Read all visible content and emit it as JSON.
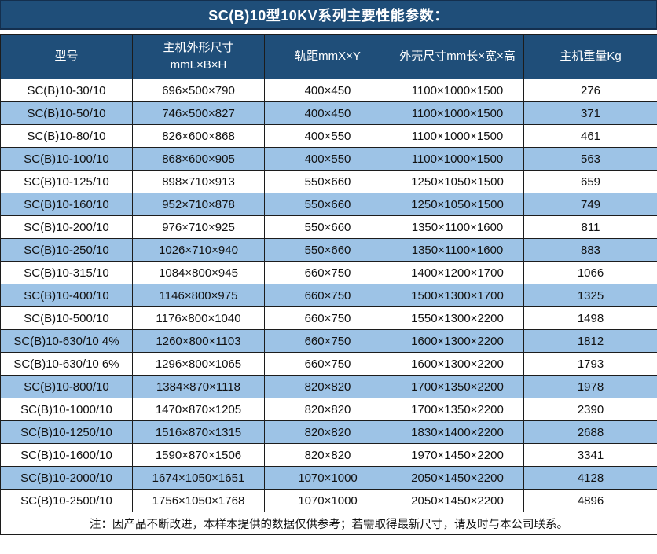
{
  "title": "SC(B)10型10KV系列主要性能参数：",
  "table": {
    "headers": [
      "型号",
      "主机外形尺寸\nmmL×B×H",
      "轨距mmX×Y",
      "外壳尺寸mm长×宽×高",
      "主机重量Kg"
    ],
    "rows": [
      [
        "SC(B)10-30/10",
        "696×500×790",
        "400×450",
        "1100×1000×1500",
        "276"
      ],
      [
        "SC(B)10-50/10",
        "746×500×827",
        "400×450",
        "1100×1000×1500",
        "371"
      ],
      [
        "SC(B)10-80/10",
        "826×600×868",
        "400×550",
        "1100×1000×1500",
        "461"
      ],
      [
        "SC(B)10-100/10",
        "868×600×905",
        "400×550",
        "1100×1000×1500",
        "563"
      ],
      [
        "SC(B)10-125/10",
        "898×710×913",
        "550×660",
        "1250×1050×1500",
        "659"
      ],
      [
        "SC(B)10-160/10",
        "952×710×878",
        "550×660",
        "1250×1050×1500",
        "749"
      ],
      [
        "SC(B)10-200/10",
        "976×710×925",
        "550×660",
        "1350×1100×1600",
        "811"
      ],
      [
        "SC(B)10-250/10",
        "1026×710×940",
        "550×660",
        "1350×1100×1600",
        "883"
      ],
      [
        "SC(B)10-315/10",
        "1084×800×945",
        "660×750",
        "1400×1200×1700",
        "1066"
      ],
      [
        "SC(B)10-400/10",
        "1146×800×975",
        "660×750",
        "1500×1300×1700",
        "1325"
      ],
      [
        "SC(B)10-500/10",
        "1176×800×1040",
        "660×750",
        "1550×1300×2200",
        "1498"
      ],
      [
        "SC(B)10-630/10 4%",
        "1260×800×1103",
        "660×750",
        "1600×1300×2200",
        "1812"
      ],
      [
        "SC(B)10-630/10 6%",
        "1296×800×1065",
        "660×750",
        "1600×1300×2200",
        "1793"
      ],
      [
        "SC(B)10-800/10",
        "1384×870×1118",
        "820×820",
        "1700×1350×2200",
        "1978"
      ],
      [
        "SC(B)10-1000/10",
        "1470×870×1205",
        "820×820",
        "1700×1350×2200",
        "2390"
      ],
      [
        "SC(B)10-1250/10",
        "1516×870×1315",
        "820×820",
        "1830×1400×2200",
        "2688"
      ],
      [
        "SC(B)10-1600/10",
        "1590×870×1506",
        "820×820",
        "1970×1450×2200",
        "3341"
      ],
      [
        "SC(B)10-2000/10",
        "1674×1050×1651",
        "1070×1000",
        "2050×1450×2200",
        "4128"
      ],
      [
        "SC(B)10-2500/10",
        "1756×1050×1768",
        "1070×1000",
        "2050×1450×2200",
        "4896"
      ]
    ]
  },
  "note": "注：因产品不断改进，本样本提供的数据仅供参考；若需取得最新尺寸，请及时与本公司联系。",
  "colors": {
    "title_bg": "#1f4e79",
    "header_bg": "#1f4e79",
    "row_bg": "#ffffff",
    "row_alt_bg": "#9dc3e6",
    "grid_border": "#1c1c1c",
    "header_text": "#ffffff",
    "body_text": "#111111"
  }
}
